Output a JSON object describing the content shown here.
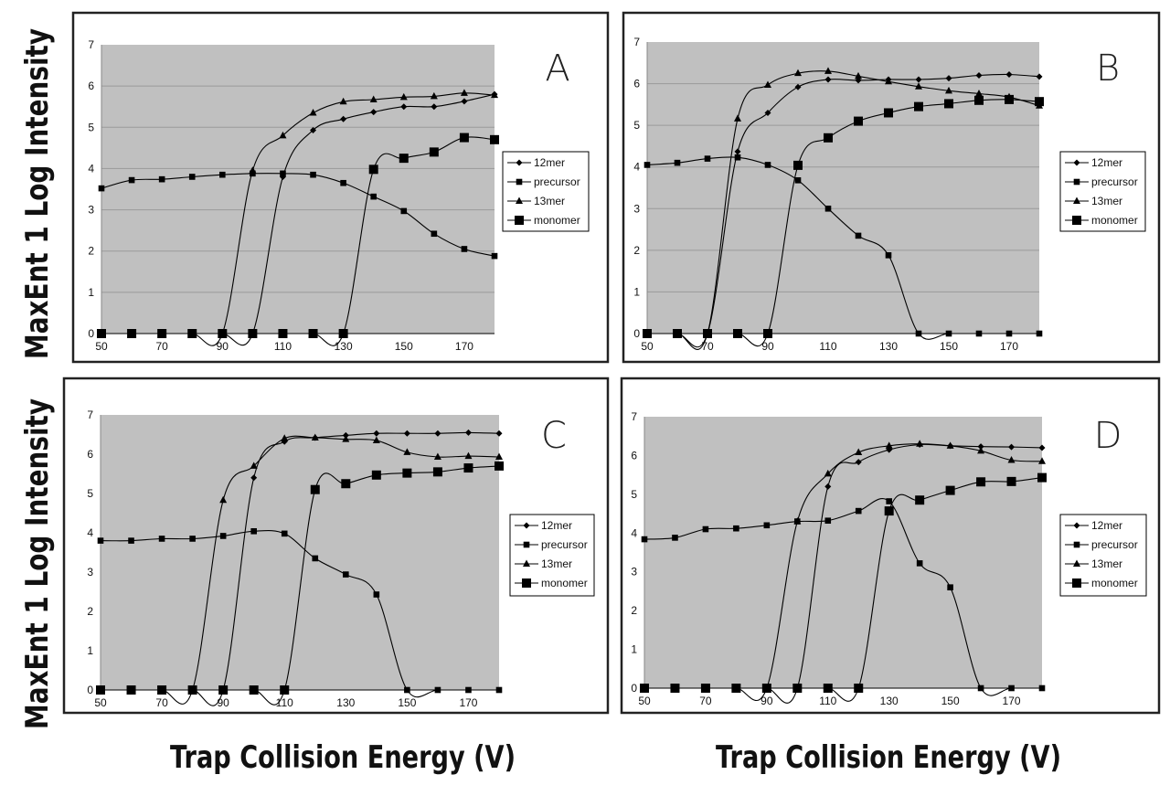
{
  "chart_data": [
    {
      "type": "line",
      "panel_label": "A",
      "x": [
        50,
        60,
        70,
        80,
        90,
        100,
        110,
        120,
        130,
        140,
        150,
        160,
        170,
        180
      ],
      "xticks": [
        "50",
        "70",
        "90",
        "110",
        "130",
        "150",
        "170"
      ],
      "yticks": [
        "0",
        "1",
        "2",
        "3",
        "4",
        "5",
        "6",
        "7"
      ],
      "ylim": [
        0,
        7
      ],
      "xlim": [
        50,
        180
      ],
      "grid": "horizontal",
      "legend": "right",
      "series": [
        {
          "name": "12mer",
          "marker": "diamond",
          "values": [
            0,
            0,
            0,
            0,
            0,
            0,
            3.8,
            4.93,
            5.2,
            5.37,
            5.5,
            5.5,
            5.63,
            5.8
          ]
        },
        {
          "name": "precursor",
          "marker": "small-square",
          "values": [
            3.52,
            3.72,
            3.74,
            3.8,
            3.85,
            3.88,
            3.88,
            3.85,
            3.65,
            3.32,
            2.97,
            2.42,
            2.05,
            1.88
          ]
        },
        {
          "name": "13mer",
          "marker": "triangle",
          "values": [
            0,
            0,
            0,
            0,
            0,
            3.95,
            4.8,
            5.35,
            5.62,
            5.67,
            5.73,
            5.75,
            5.83,
            5.78
          ]
        },
        {
          "name": "monomer",
          "marker": "large-square",
          "values": [
            0,
            0,
            0,
            0,
            0,
            0,
            0,
            0,
            0,
            3.98,
            4.25,
            4.4,
            4.75,
            4.7
          ]
        }
      ]
    },
    {
      "type": "line",
      "panel_label": "B",
      "x": [
        50,
        60,
        70,
        80,
        90,
        100,
        110,
        120,
        130,
        140,
        150,
        160,
        170,
        180
      ],
      "xticks": [
        "50",
        "70",
        "90",
        "110",
        "130",
        "150",
        "170"
      ],
      "yticks": [
        "0",
        "1",
        "2",
        "3",
        "4",
        "5",
        "6",
        "7"
      ],
      "ylim": [
        0,
        7
      ],
      "xlim": [
        50,
        180
      ],
      "grid": "horizontal",
      "legend": "right",
      "series": [
        {
          "name": "12mer",
          "marker": "diamond",
          "values": [
            0,
            0,
            0,
            4.37,
            5.3,
            5.92,
            6.1,
            6.08,
            6.1,
            6.1,
            6.13,
            6.2,
            6.22,
            6.17
          ]
        },
        {
          "name": "precursor",
          "marker": "small-square",
          "values": [
            4.05,
            4.1,
            4.2,
            4.23,
            4.05,
            3.68,
            3.0,
            2.35,
            1.88,
            0,
            0,
            0,
            0,
            0
          ]
        },
        {
          "name": "13mer",
          "marker": "triangle",
          "values": [
            0,
            0,
            0,
            5.16,
            5.97,
            6.25,
            6.3,
            6.18,
            6.05,
            5.93,
            5.83,
            5.76,
            5.68,
            5.47
          ]
        },
        {
          "name": "monomer",
          "marker": "large-square",
          "values": [
            0,
            0,
            0,
            0,
            0,
            4.04,
            4.7,
            5.1,
            5.3,
            5.45,
            5.52,
            5.6,
            5.62,
            5.57
          ]
        }
      ]
    },
    {
      "type": "line",
      "panel_label": "C",
      "x": [
        50,
        60,
        70,
        80,
        90,
        100,
        110,
        120,
        130,
        140,
        150,
        160,
        170,
        180
      ],
      "xticks": [
        "50",
        "70",
        "90",
        "110",
        "130",
        "150",
        "170"
      ],
      "yticks": [
        "0",
        "1",
        "2",
        "3",
        "4",
        "5",
        "6",
        "7"
      ],
      "ylim": [
        0,
        7
      ],
      "xlim": [
        50,
        180
      ],
      "grid": "none",
      "legend": "right",
      "series": [
        {
          "name": "12mer",
          "marker": "diamond",
          "values": [
            0,
            0,
            0,
            0,
            0,
            5.4,
            6.32,
            6.42,
            6.48,
            6.53,
            6.53,
            6.53,
            6.55,
            6.53
          ]
        },
        {
          "name": "precursor",
          "marker": "small-square",
          "values": [
            3.8,
            3.8,
            3.85,
            3.85,
            3.92,
            4.04,
            3.98,
            3.35,
            2.94,
            2.43,
            0,
            0,
            0,
            0
          ]
        },
        {
          "name": "13mer",
          "marker": "triangle",
          "values": [
            0,
            0,
            0,
            0,
            4.83,
            5.7,
            6.4,
            6.42,
            6.38,
            6.35,
            6.05,
            5.93,
            5.95,
            5.93
          ]
        },
        {
          "name": "monomer",
          "marker": "large-square",
          "values": [
            0,
            0,
            0,
            0,
            0,
            0,
            0,
            5.1,
            5.25,
            5.47,
            5.52,
            5.55,
            5.65,
            5.7
          ]
        }
      ]
    },
    {
      "type": "line",
      "panel_label": "D",
      "x": [
        50,
        60,
        70,
        80,
        90,
        100,
        110,
        120,
        130,
        140,
        150,
        160,
        170,
        180
      ],
      "xticks": [
        "50",
        "70",
        "90",
        "110",
        "130",
        "150",
        "170"
      ],
      "yticks": [
        "0",
        "1",
        "2",
        "3",
        "4",
        "5",
        "6",
        "7"
      ],
      "ylim": [
        0,
        7
      ],
      "xlim": [
        50,
        180
      ],
      "grid": "none",
      "legend": "right",
      "series": [
        {
          "name": "12mer",
          "marker": "diamond",
          "values": [
            0,
            0,
            0,
            0,
            0,
            0,
            5.2,
            5.83,
            6.15,
            6.28,
            6.25,
            6.23,
            6.22,
            6.2
          ]
        },
        {
          "name": "precursor",
          "marker": "small-square",
          "values": [
            3.84,
            3.88,
            4.1,
            4.12,
            4.2,
            4.3,
            4.32,
            4.57,
            4.82,
            3.22,
            2.6,
            0,
            0,
            0
          ]
        },
        {
          "name": "13mer",
          "marker": "triangle",
          "values": [
            0,
            0,
            0,
            0,
            0,
            4.3,
            5.53,
            6.08,
            6.25,
            6.3,
            6.25,
            6.12,
            5.88,
            5.85
          ]
        },
        {
          "name": "monomer",
          "marker": "large-square",
          "values": [
            0,
            0,
            0,
            0,
            0,
            0,
            0,
            0,
            4.57,
            4.85,
            5.1,
            5.32,
            5.33,
            5.43
          ]
        }
      ]
    }
  ],
  "labels": {
    "ylabel": "MaxEnt 1 Log Intensity",
    "xlabel": "Trap Collision Energy (V)"
  },
  "colors": {
    "plot_bg": "#c0c0c0",
    "line": "#000000",
    "grid": "#9a9a9a",
    "frame": "#222222"
  }
}
